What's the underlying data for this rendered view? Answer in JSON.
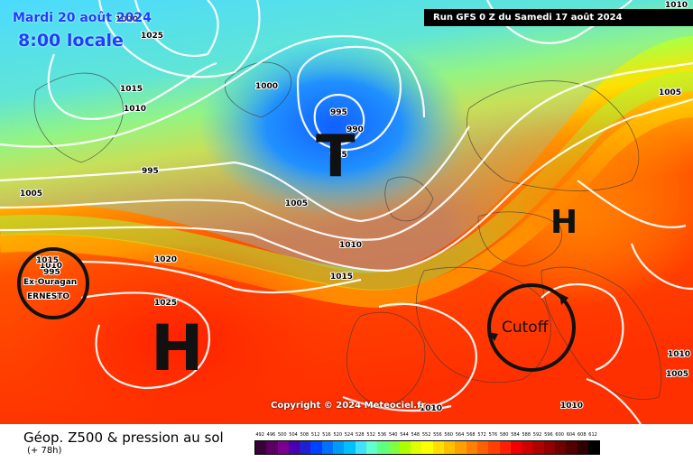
{
  "header": {
    "date": "Mardi 20 août 2024",
    "local_time": "8:00 locale",
    "run": "Run GFS 0 Z du Samedi 17 août 2024"
  },
  "footer": {
    "title": "Géop. Z500 & pression au sol",
    "subtitle": "(+ 78h)",
    "copyright": "Copyright © 2024 Meteociel.fr"
  },
  "legend": {
    "values": [
      "492",
      "496",
      "500",
      "504",
      "508",
      "512",
      "516",
      "520",
      "524",
      "528",
      "532",
      "536",
      "540",
      "544",
      "548",
      "552",
      "556",
      "560",
      "564",
      "568",
      "572",
      "576",
      "580",
      "584",
      "588",
      "592",
      "596",
      "600",
      "604",
      "608",
      "612"
    ],
    "colors": [
      "#3a003a",
      "#5a0060",
      "#7a0090",
      "#4a00b0",
      "#2020d0",
      "#0040ff",
      "#0070ff",
      "#0099ff",
      "#00c0ff",
      "#40e0ff",
      "#60ffd0",
      "#60ff80",
      "#80ff40",
      "#b0ff00",
      "#e0ff00",
      "#ffff00",
      "#ffe000",
      "#ffc000",
      "#ffa000",
      "#ff8000",
      "#ff6000",
      "#ff4000",
      "#ff2000",
      "#f00000",
      "#d00000",
      "#b00000",
      "#900000",
      "#700000",
      "#500000",
      "#300000",
      "#000000"
    ]
  },
  "map": {
    "systems": [
      {
        "label": "T",
        "type": "low"
      },
      {
        "label": "H",
        "type": "high"
      },
      {
        "label": "H",
        "type": "high"
      }
    ],
    "annotations": {
      "hurricane": "Ex-Ouragan",
      "hurricane_name": "ERNESTO",
      "cutoff": "Cutoff"
    },
    "isobars": [
      "1020",
      "1025",
      "1015",
      "1010",
      "1000",
      "995",
      "990",
      "995",
      "995",
      "1005",
      "1005",
      "1005",
      "1010",
      "1015",
      "1020",
      "1025",
      "1010",
      "1010",
      "1005",
      "1010",
      "995",
      "1010",
      "1010",
      "1015"
    ]
  }
}
